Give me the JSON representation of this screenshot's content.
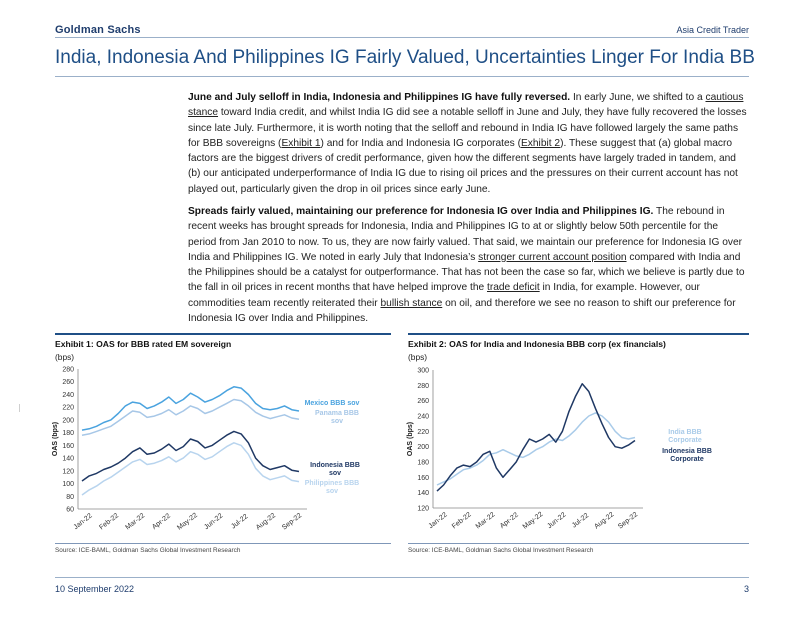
{
  "header": {
    "brand": "Goldman Sachs",
    "publication": "Asia Credit Trader"
  },
  "title": "India, Indonesia And Philippines IG Fairly Valued, Uncertainties Linger For India BB",
  "paragraph1": {
    "lead": "June and July selloff in India, Indonesia and Philippines IG have fully reversed.",
    "t1": " In early June, we shifted to a ",
    "link1": "cautious stance",
    "t2": " toward India credit, and whilst India IG did see a notable selloff in June and July, they have fully recovered the losses since late July. Furthermore, it is worth noting that the selloff and rebound in India IG have followed largely the same paths for BBB sovereigns (",
    "link2": "Exhibit 1",
    "t3": ") and for India and Indonesia IG corporates (",
    "link3": "Exhibit 2",
    "t4": "). These suggest that (a) global macro factors are the biggest drivers of credit performance, given how the different segments have largely traded in tandem, and (b) our anticipated underperformance of India IG due to rising oil prices and the pressures on their current account has not played out, particularly given the drop in oil prices since early June."
  },
  "paragraph2": {
    "lead": "Spreads fairly valued, maintaining our preference for Indonesia IG over India and Philippines IG.",
    "t1": " The rebound in recent weeks has brought spreads for Indonesia, India and Philippines IG to at or slightly below 50th percentile for the period from Jan 2010 to now. To us, they are now fairly valued. That said, we maintain our preference for Indonesia IG over India and Philippines IG. We noted in early July that Indonesia’s ",
    "link1": "stronger current account position",
    "t2": " compared with India and the Philippines should be a catalyst for outperformance. That has not been the case so far, which we believe is partly due to the fall in oil prices in recent months that have helped improve the ",
    "link2": "trade deficit",
    "t3": " in India, for example. However, our commodities team recently reiterated their ",
    "link3": "bullish stance",
    "t4": " on oil, and therefore we see no reason to shift our preference for Indonesia IG over India and Philippines."
  },
  "exhibit1": {
    "title": "Exhibit 1: OAS for BBB rated EM sovereign",
    "unit": "(bps)",
    "source": "Source: ICE-BAML, Goldman Sachs Global Investment Research"
  },
  "exhibit2": {
    "title": "Exhibit 2: OAS for India and Indonesia BBB corp (ex financials)",
    "unit": "(bps)",
    "source": "Source: ICE-BAML, Goldman Sachs Global Investment Research"
  },
  "chart_data": [
    {
      "type": "line",
      "title": "Exhibit 1: OAS for BBB rated EM sovereign",
      "ylabel": "OAS (bps)",
      "ylim": [
        60,
        280
      ],
      "yticks": [
        60,
        80,
        100,
        120,
        140,
        160,
        180,
        200,
        220,
        240,
        260,
        280
      ],
      "xlabels": [
        "Jan-22",
        "Feb-22",
        "Mar-22",
        "Apr-22",
        "May-22",
        "Jun-22",
        "Jul-22",
        "Aug-22",
        "Sep-22"
      ],
      "series": [
        {
          "name": "Mexico BBB sov",
          "color": "#4aa3df",
          "values": [
            184,
            186,
            190,
            196,
            200,
            210,
            222,
            228,
            226,
            218,
            222,
            228,
            236,
            226,
            232,
            242,
            236,
            228,
            232,
            238,
            246,
            252,
            250,
            240,
            226,
            218,
            216,
            218,
            222,
            216,
            214
          ]
        },
        {
          "name": "Panama BBB sov",
          "color": "#a7c7e7",
          "values": [
            176,
            178,
            182,
            186,
            190,
            198,
            206,
            214,
            212,
            204,
            206,
            210,
            216,
            208,
            214,
            222,
            218,
            210,
            214,
            220,
            226,
            232,
            230,
            222,
            212,
            206,
            202,
            205,
            208,
            203,
            201
          ]
        },
        {
          "name": "Indonesia BBB sov",
          "color": "#1f3864",
          "values": [
            104,
            112,
            116,
            122,
            126,
            132,
            140,
            150,
            156,
            146,
            148,
            154,
            162,
            152,
            158,
            170,
            166,
            156,
            160,
            168,
            176,
            182,
            178,
            164,
            140,
            128,
            122,
            125,
            128,
            121,
            119
          ]
        },
        {
          "name": "Philippines BBB sov",
          "color": "#b8d4ee",
          "values": [
            82,
            90,
            96,
            104,
            110,
            118,
            126,
            134,
            138,
            130,
            132,
            136,
            142,
            134,
            140,
            150,
            146,
            138,
            142,
            150,
            158,
            164,
            160,
            146,
            124,
            112,
            106,
            109,
            112,
            105,
            103
          ]
        }
      ]
    },
    {
      "type": "line",
      "title": "Exhibit 2: OAS for India and Indonesia BBB corp (ex financials)",
      "ylabel": "OAS (bps)",
      "ylim": [
        120,
        300
      ],
      "yticks": [
        120,
        140,
        160,
        180,
        200,
        220,
        240,
        260,
        280,
        300
      ],
      "xlabels": [
        "Jan-22",
        "Feb-22",
        "Mar-22",
        "Apr-22",
        "May-22",
        "Jun-22",
        "Jul-22",
        "Aug-22",
        "Sep-22"
      ],
      "series": [
        {
          "name": "India BBB Corporate",
          "color": "#a9cbe9",
          "values": [
            150,
            154,
            158,
            164,
            170,
            172,
            176,
            182,
            190,
            192,
            196,
            192,
            188,
            186,
            190,
            196,
            200,
            206,
            210,
            208,
            214,
            222,
            232,
            240,
            244,
            240,
            232,
            220,
            212,
            210,
            212
          ]
        },
        {
          "name": "Indonesia BBB Corporate",
          "color": "#1f3864",
          "values": [
            142,
            150,
            162,
            172,
            176,
            174,
            180,
            190,
            194,
            172,
            160,
            170,
            180,
            196,
            210,
            206,
            210,
            216,
            206,
            220,
            246,
            266,
            282,
            272,
            250,
            230,
            212,
            200,
            198,
            202,
            208
          ]
        }
      ]
    }
  ]
}
